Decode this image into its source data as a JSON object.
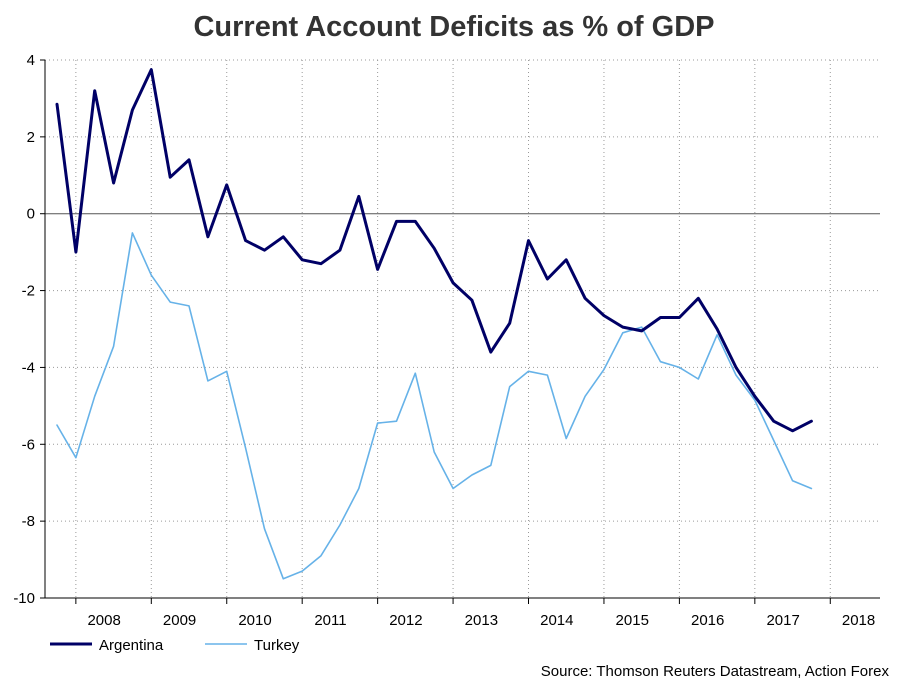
{
  "chart_data": {
    "type": "line",
    "title": "Current Account Deficits as % of GDP",
    "xlabel": "",
    "ylabel": "",
    "ylim": [
      -10,
      4
    ],
    "yticks": [
      4,
      2,
      0,
      -2,
      -4,
      -6,
      -8,
      -10
    ],
    "ytick_labels": [
      "4",
      "2",
      "0",
      "-2",
      "-4",
      "-6",
      "-8",
      "-10"
    ],
    "x_start": 2007.75,
    "x_end": 2018.5,
    "year_labels": [
      "2008",
      "2009",
      "2010",
      "2011",
      "2012",
      "2013",
      "2014",
      "2015",
      "2016",
      "2017",
      "2018"
    ],
    "grid": true,
    "legend_position": "bottom-left",
    "series": [
      {
        "name": "Argentina",
        "color": "#000066",
        "x": [
          2007.75,
          2008.0,
          2008.25,
          2008.5,
          2008.75,
          2009.0,
          2009.25,
          2009.5,
          2009.75,
          2010.0,
          2010.25,
          2010.5,
          2010.75,
          2011.0,
          2011.25,
          2011.5,
          2011.75,
          2012.0,
          2012.25,
          2012.5,
          2012.75,
          2013.0,
          2013.25,
          2013.5,
          2013.75,
          2014.0,
          2014.25,
          2014.5,
          2014.75,
          2015.0,
          2015.25,
          2015.5,
          2015.75,
          2016.0,
          2016.25,
          2016.5,
          2016.75,
          2017.0,
          2017.25,
          2017.5,
          2017.75
        ],
        "values": [
          2.85,
          -1.0,
          3.2,
          0.8,
          2.7,
          3.75,
          0.95,
          1.4,
          -0.6,
          0.75,
          -0.7,
          -0.95,
          -0.6,
          -1.2,
          -1.3,
          -0.95,
          0.45,
          -1.45,
          -0.2,
          -0.2,
          -0.9,
          -1.8,
          -2.25,
          -3.6,
          -2.85,
          -0.7,
          -1.7,
          -1.2,
          -2.2,
          -2.65,
          -2.95,
          -3.05,
          -2.7,
          -2.7,
          -2.2,
          -3.0,
          -4.0,
          -4.75,
          -5.4,
          -5.65,
          -5.4
        ]
      },
      {
        "name": "Turkey",
        "color": "#66b2e8",
        "x": [
          2007.75,
          2008.0,
          2008.25,
          2008.5,
          2008.75,
          2009.0,
          2009.25,
          2009.5,
          2009.75,
          2010.0,
          2010.25,
          2010.5,
          2010.75,
          2011.0,
          2011.25,
          2011.5,
          2011.75,
          2012.0,
          2012.25,
          2012.5,
          2012.75,
          2013.0,
          2013.25,
          2013.5,
          2013.75,
          2014.0,
          2014.25,
          2014.5,
          2014.75,
          2015.0,
          2015.25,
          2015.5,
          2015.75,
          2016.0,
          2016.25,
          2016.5,
          2016.75,
          2017.0,
          2017.25,
          2017.5,
          2017.75
        ],
        "values": [
          -5.5,
          -6.35,
          -4.75,
          -3.45,
          -0.5,
          -1.6,
          -2.3,
          -2.4,
          -4.35,
          -4.1,
          -6.1,
          -8.2,
          -9.5,
          -9.3,
          -8.9,
          -8.1,
          -7.15,
          -5.45,
          -5.4,
          -4.15,
          -6.2,
          -7.15,
          -6.8,
          -6.55,
          -4.5,
          -4.1,
          -4.2,
          -5.85,
          -4.75,
          -4.05,
          -3.1,
          -2.95,
          -3.85,
          -4.0,
          -4.3,
          -3.15,
          -4.2,
          -4.85,
          -5.9,
          -6.95,
          -7.15
        ]
      }
    ],
    "source": "Source: Thomson Reuters Datastream, Action Forex"
  }
}
